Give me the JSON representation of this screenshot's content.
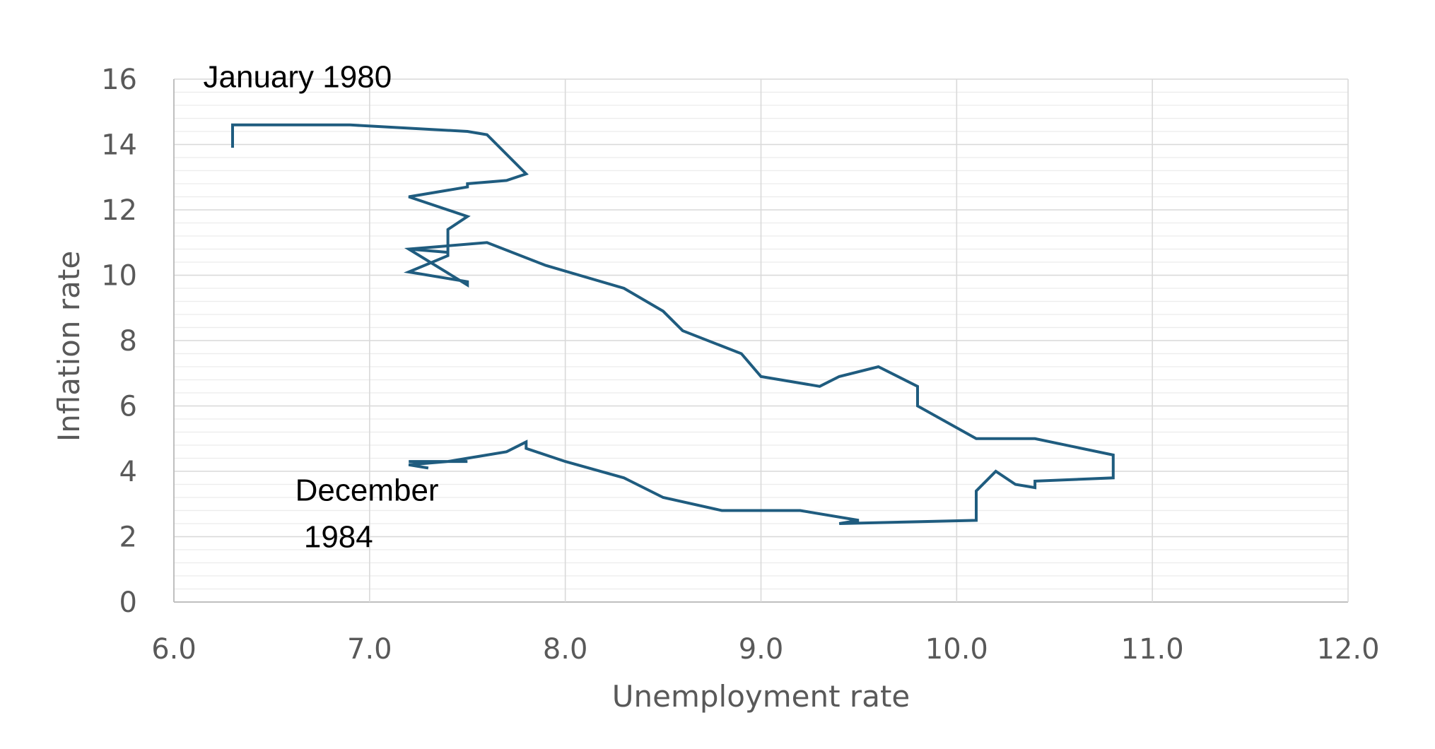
{
  "chart_data": {
    "type": "line",
    "title": "",
    "xlabel": "Unemployment rate",
    "ylabel": "Inflation rate",
    "xlim": [
      6.0,
      12.0
    ],
    "ylim": [
      0,
      16
    ],
    "x_major_step": 1.0,
    "y_major_step": 2,
    "y_minor_step": 0.4,
    "x_tick_labels": [
      "6.0",
      "7.0",
      "8.0",
      "9.0",
      "10.0",
      "11.0",
      "12.0"
    ],
    "y_tick_labels": [
      "0",
      "2",
      "4",
      "6",
      "8",
      "10",
      "12",
      "14",
      "16"
    ],
    "grid": true,
    "line_color": "#1f5c7f",
    "annotations": [
      {
        "id": "start",
        "lines": [
          "January 1980"
        ],
        "x": 6.15,
        "y": 15.75
      },
      {
        "id": "end",
        "lines": [
          "December",
          " 1984"
        ],
        "x": 6.62,
        "y": 3.1
      }
    ],
    "series": [
      {
        "name": "Inflation vs Unemployment",
        "x": [
          6.3,
          6.3,
          6.9,
          7.5,
          7.6,
          7.8,
          7.7,
          7.5,
          7.5,
          7.2,
          7.5,
          7.4,
          7.4,
          7.2,
          7.4,
          7.4,
          7.2,
          7.5,
          7.5,
          7.2,
          7.6,
          7.9,
          8.3,
          8.5,
          8.6,
          8.9,
          9.0,
          9.3,
          9.4,
          9.6,
          9.8,
          9.8,
          10.1,
          10.4,
          10.8,
          10.8,
          10.4,
          10.4,
          10.3,
          10.2,
          10.1,
          10.1,
          9.4,
          9.5,
          9.2,
          8.8,
          8.5,
          8.3,
          8.0,
          7.8,
          7.8,
          7.7,
          7.5,
          7.4,
          7.2,
          7.5,
          7.4,
          7.2,
          7.3
        ],
        "y": [
          13.9,
          14.6,
          14.6,
          14.4,
          14.3,
          13.1,
          12.9,
          12.8,
          12.7,
          12.4,
          11.8,
          11.4,
          10.7,
          10.8,
          10.7,
          10.6,
          10.1,
          9.8,
          9.7,
          10.8,
          11.0,
          10.3,
          9.6,
          8.9,
          8.3,
          7.6,
          6.9,
          6.6,
          6.9,
          7.2,
          6.6,
          6.0,
          5.0,
          5.0,
          4.5,
          3.8,
          3.7,
          3.5,
          3.6,
          4.0,
          3.4,
          2.5,
          2.4,
          2.5,
          2.8,
          2.8,
          3.2,
          3.8,
          4.3,
          4.7,
          4.9,
          4.6,
          4.4,
          4.3,
          4.3,
          4.3,
          4.3,
          4.2,
          4.1
        ]
      }
    ]
  }
}
